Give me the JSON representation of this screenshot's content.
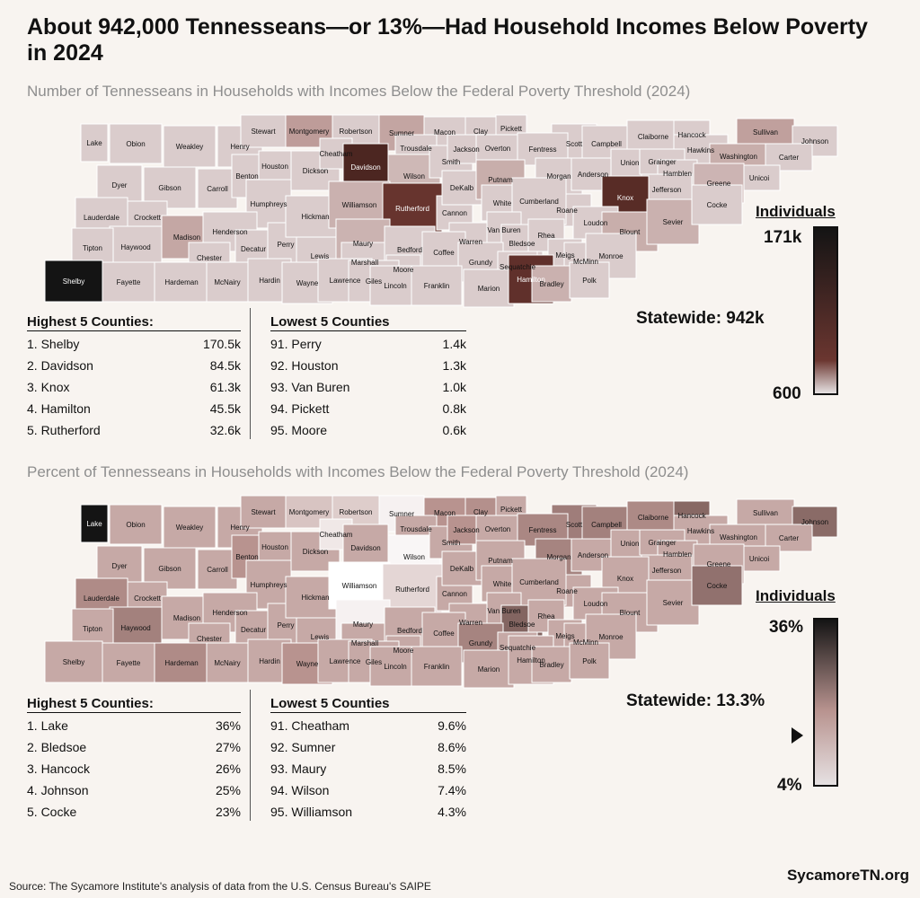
{
  "title": "About 942,000 Tennesseans—or 13%—Had Household Incomes Below Poverty in 2024",
  "colors": {
    "scale_low": "#e6e1e2",
    "scale_mid": "#b8938f",
    "scale_high_count": "#6b3630",
    "scale_top": "#141414",
    "background": "#f8f4f0"
  },
  "map1": {
    "subtitle": "Number of Tennesseans in Households with Incomes Below the Federal Poverty Threshold (2024)",
    "legend_title": "Individuals",
    "legend_max": "171k",
    "legend_min": "600",
    "statewide": "Statewide: 942k",
    "highest_header": "Highest 5 Counties:",
    "lowest_header": "Lowest 5 Counties",
    "highest": [
      {
        "label": "1. Shelby",
        "value": "170.5k"
      },
      {
        "label": "2. Davidson",
        "value": "84.5k"
      },
      {
        "label": "3. Knox",
        "value": "61.3k"
      },
      {
        "label": "4. Hamilton",
        "value": "45.5k"
      },
      {
        "label": "5. Rutherford",
        "value": "32.6k"
      }
    ],
    "lowest": [
      {
        "label": "91. Perry",
        "value": "1.4k"
      },
      {
        "label": "92. Houston",
        "value": "1.3k"
      },
      {
        "label": "93. Van Buren",
        "value": "1.0k"
      },
      {
        "label": "94. Pickett",
        "value": "0.8k"
      },
      {
        "label": "95. Moore",
        "value": "0.6k"
      }
    ]
  },
  "map2": {
    "subtitle": "Percent of Tennesseans in Households with Incomes Below the Federal Poverty Threshold (2024)",
    "legend_title": "Individuals",
    "legend_max": "36%",
    "legend_min": "4%",
    "statewide": "Statewide: 13.3%",
    "statewide_level_pct": 13.3,
    "highest_header": "Highest 5 Counties:",
    "lowest_header": "Lowest 5 Counties",
    "highest": [
      {
        "label": "1. Lake",
        "value": "36%"
      },
      {
        "label": "2. Bledsoe",
        "value": "27%"
      },
      {
        "label": "3. Hancock",
        "value": "26%"
      },
      {
        "label": "4. Johnson",
        "value": "25%"
      },
      {
        "label": "5. Cocke",
        "value": "23%"
      }
    ],
    "lowest": [
      {
        "label": "91. Cheatham",
        "value": "9.6%"
      },
      {
        "label": "92. Sumner",
        "value": "8.6%"
      },
      {
        "label": "93. Maury",
        "value": "8.5%"
      },
      {
        "label": "94. Wilson",
        "value": "7.4%"
      },
      {
        "label": "95. Williamson",
        "value": "4.3%"
      }
    ]
  },
  "counties": [
    "Lake",
    "Obion",
    "Weakley",
    "Henry",
    "Stewart",
    "Montgomery",
    "Robertson",
    "Sumner",
    "Macon",
    "Clay",
    "Pickett",
    "Scott",
    "Campbell",
    "Claiborne",
    "Hancock",
    "Hawkins",
    "Sullivan",
    "Johnson",
    "Dyer",
    "Gibson",
    "Carroll",
    "Benton",
    "Houston",
    "Humphreys",
    "Dickson",
    "Cheatham",
    "Davidson",
    "Trousdale",
    "Wilson",
    "Smith",
    "Jackson",
    "Overton",
    "Fentress",
    "Morgan",
    "Anderson",
    "Union",
    "Grainger",
    "Hamblen",
    "Washington",
    "Carter",
    "Unicoi",
    "Greene",
    "Jefferson",
    "Knox",
    "Roane",
    "Loudon",
    "Blount",
    "Sevier",
    "Cocke",
    "Lauderdale",
    "Crockett",
    "Haywood",
    "Madison",
    "Henderson",
    "Decatur",
    "Perry",
    "Hickman",
    "Williamson",
    "Rutherford",
    "Cannon",
    "DeKalb",
    "Putnam",
    "White",
    "Cumberland",
    "Warren",
    "Van Buren",
    "Bledsoe",
    "Rhea",
    "Meigs",
    "McMinn",
    "Monroe",
    "Tipton",
    "Chester",
    "Lewis",
    "Maury",
    "Marshall",
    "Bedford",
    "Coffee",
    "Grundy",
    "Sequatchie",
    "Moore",
    "Shelby",
    "Fayette",
    "Hardeman",
    "McNairy",
    "Hardin",
    "Wayne",
    "Lawrence",
    "Giles",
    "Lincoln",
    "Franklin",
    "Marion",
    "Hamilton",
    "Bradley",
    "Polk"
  ],
  "source": "Source: The Sycamore Institute's analysis of data from the U.S. Census Bureau's SAIPE",
  "brand": "SycamoreTN.org"
}
